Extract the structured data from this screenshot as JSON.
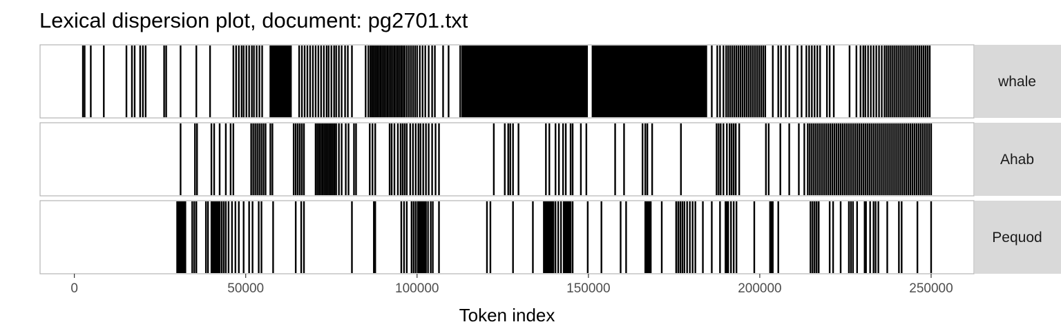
{
  "chart_data": {
    "type": "dispersion",
    "title": "Lexical dispersion plot, document: pg2701.txt",
    "xlabel": "Token index",
    "ylabel": "",
    "xlim": [
      -10000,
      262500
    ],
    "xticks": [
      0,
      50000,
      100000,
      150000,
      200000,
      250000
    ],
    "xtick_labels": [
      "0",
      "50000",
      "100000",
      "150000",
      "200000",
      "250000"
    ],
    "grid": false,
    "legend": "none",
    "series": [
      {
        "name": "whale",
        "x": [
          2500,
          3000,
          4800,
          8600,
          15200,
          16800,
          17600,
          19200,
          20000,
          20800,
          26200,
          26800,
          31000,
          35600,
          39600,
          46400,
          47200,
          48000,
          48800,
          49400,
          50200,
          51000,
          51800,
          52400,
          53200,
          54000,
          54800,
          57200,
          57500,
          57800,
          58100,
          58400,
          58700,
          59000,
          59300,
          59600,
          59900,
          60200,
          60500,
          60800,
          61100,
          61400,
          61700,
          62000,
          62300,
          62600,
          62900,
          63200,
          65600,
          66400,
          67200,
          68000,
          68800,
          69600,
          70400,
          71200,
          72000,
          72800,
          73600,
          74200,
          75000,
          75800,
          76400,
          77200,
          78000,
          79000,
          79800,
          81000,
          85000,
          85800,
          86400,
          86900,
          87400,
          87900,
          88400,
          88900,
          89400,
          89900,
          90400,
          90900,
          91400,
          91900,
          92400,
          92900,
          93400,
          93900,
          94400,
          94900,
          95400,
          95900,
          96400,
          97000,
          97600,
          98200,
          98800,
          99400,
          100000,
          100800,
          101600,
          102400,
          103400,
          104400,
          105200,
          107600,
          109200,
          112600,
          113200,
          113600,
          114000,
          114400,
          114800,
          115200,
          115600,
          116000,
          116400,
          116800,
          117200,
          117600,
          118000,
          118400,
          118800,
          119200,
          119600,
          120000,
          120400,
          120800,
          121200,
          121600,
          122000,
          122400,
          122800,
          123200,
          123600,
          124000,
          124400,
          124800,
          125200,
          125600,
          126000,
          126400,
          126800,
          127200,
          127600,
          128000,
          128400,
          128800,
          129200,
          129600,
          130000,
          130400,
          130800,
          131200,
          131600,
          132000,
          132400,
          132800,
          133200,
          133600,
          134000,
          134400,
          134800,
          135200,
          135600,
          136000,
          136400,
          136800,
          137200,
          137600,
          138000,
          138400,
          138800,
          139200,
          139600,
          140000,
          140400,
          140800,
          141200,
          141600,
          142000,
          142400,
          142800,
          143200,
          143600,
          144000,
          144400,
          144800,
          145200,
          145600,
          146000,
          146400,
          146800,
          147200,
          147600,
          148000,
          148400,
          148800,
          149200,
          149600,
          151200,
          151600,
          152000,
          152400,
          152800,
          153200,
          153600,
          154000,
          154400,
          154800,
          155200,
          155600,
          156000,
          156400,
          156800,
          157200,
          157600,
          158000,
          158400,
          158800,
          159200,
          159600,
          160000,
          160400,
          160800,
          161200,
          161600,
          162000,
          162400,
          162800,
          163200,
          163600,
          164000,
          164400,
          164800,
          165200,
          165600,
          166000,
          166400,
          166800,
          167200,
          167600,
          168000,
          168400,
          168800,
          169200,
          169600,
          170000,
          170400,
          170800,
          171200,
          171600,
          172000,
          172400,
          172800,
          173200,
          173600,
          174000,
          174400,
          174800,
          175200,
          175600,
          176000,
          176400,
          176800,
          177200,
          177600,
          178000,
          178400,
          178800,
          179200,
          179600,
          180000,
          180400,
          180800,
          181200,
          181600,
          182000,
          182400,
          182800,
          183200,
          183600,
          184000,
          184400,
          186000,
          187600,
          188400,
          189400,
          190200,
          190800,
          191400,
          192000,
          192600,
          193200,
          193800,
          194400,
          195000,
          195600,
          196200,
          196800,
          197400,
          198000,
          198600,
          199200,
          199800,
          200400,
          201000,
          201600,
          203800,
          205400,
          206200,
          207600,
          208600,
          211000,
          212200,
          213600,
          214400,
          215200,
          216000,
          216800,
          217600,
          219600,
          220400,
          221600,
          226200,
          228200,
          229400,
          230200,
          230800,
          231600,
          232400,
          233200,
          234000,
          234800,
          235600,
          236400,
          237000,
          237600,
          238200,
          238800,
          239400,
          240000,
          240600,
          241200,
          241800,
          242400,
          243000,
          243600,
          244200,
          244800,
          245400,
          246000,
          246600,
          247200,
          247800,
          248400,
          249000,
          249600
        ]
      },
      {
        "name": "Ahab",
        "x": [
          31000,
          35200,
          35800,
          40000,
          40800,
          42400,
          44200,
          45600,
          46400,
          51600,
          52200,
          52800,
          53400,
          54000,
          54600,
          55200,
          55800,
          57200,
          57800,
          64000,
          64600,
          65200,
          65800,
          66400,
          67000,
          70400,
          70900,
          71400,
          71900,
          72400,
          72900,
          73400,
          73900,
          74400,
          74900,
          75400,
          75900,
          76400,
          77200,
          78000,
          79200,
          80000,
          81600,
          82200,
          86200,
          87000,
          87800,
          92000,
          92600,
          93400,
          94400,
          95200,
          95800,
          96400,
          97000,
          98000,
          98800,
          99600,
          100400,
          101000,
          101800,
          102600,
          103400,
          104400,
          105400,
          106400,
          122400,
          125600,
          126600,
          127200,
          128000,
          129600,
          137600,
          138600,
          140400,
          141400,
          142600,
          143400,
          144800,
          145400,
          147800,
          149400,
          157800,
          160400,
          165800,
          166600,
          167200,
          168600,
          177000,
          187400,
          188000,
          188600,
          189400,
          190400,
          191200,
          191800,
          192400,
          193000,
          194000,
          201800,
          202600,
          206000,
          208600,
          211400,
          213000,
          214000,
          214600,
          215200,
          215800,
          216400,
          217000,
          217600,
          218200,
          218800,
          219400,
          220000,
          220600,
          221200,
          221800,
          222400,
          223000,
          223600,
          224200,
          224800,
          225400,
          226000,
          226600,
          227200,
          227800,
          228400,
          229000,
          229600,
          230200,
          230800,
          231400,
          232000,
          232600,
          233200,
          233800,
          234400,
          235000,
          235600,
          236200,
          236800,
          237400,
          238000,
          238600,
          239200,
          239800,
          240400,
          241000,
          241600,
          242200,
          242800,
          243400,
          244000,
          244600,
          245200,
          245800,
          246400,
          247000,
          247600,
          248200,
          248800,
          249400,
          250000
        ]
      },
      {
        "name": "Pequod",
        "x": [
          30000,
          30400,
          30800,
          31200,
          31600,
          32000,
          32400,
          34400,
          35000,
          35600,
          38400,
          39000,
          40000,
          40400,
          40800,
          41200,
          41600,
          42000,
          42400,
          43000,
          43600,
          44200,
          45000,
          46000,
          47000,
          48000,
          49400,
          51000,
          52000,
          53800,
          54600,
          58000,
          64600,
          66200,
          67000,
          81000,
          87400,
          87800,
          95400,
          96200,
          97000,
          98400,
          99000,
          99600,
          100200,
          100600,
          101000,
          101400,
          101800,
          102200,
          102600,
          103200,
          104000,
          104600,
          106400,
          120400,
          121400,
          128000,
          133800,
          137000,
          137400,
          137800,
          138200,
          138600,
          139000,
          139400,
          139800,
          140400,
          141200,
          142000,
          142800,
          143200,
          143600,
          144000,
          144400,
          144800,
          145400,
          149800,
          153800,
          159400,
          161000,
          166600,
          167000,
          167400,
          167800,
          168200,
          171400,
          175600,
          176200,
          176800,
          177400,
          178000,
          178800,
          179600,
          180400,
          181200,
          183400,
          186000,
          188400,
          190000,
          190400,
          190800,
          191600,
          192400,
          193200,
          198400,
          203000,
          203400,
          203800,
          205400,
          214800,
          215400,
          216000,
          216600,
          217200,
          220400,
          221400,
          223600,
          226000,
          226600,
          227200,
          228400,
          230600,
          231000,
          232200,
          233200,
          233800,
          234600,
          237200,
          240600,
          241400,
          246000,
          250000
        ]
      }
    ]
  }
}
